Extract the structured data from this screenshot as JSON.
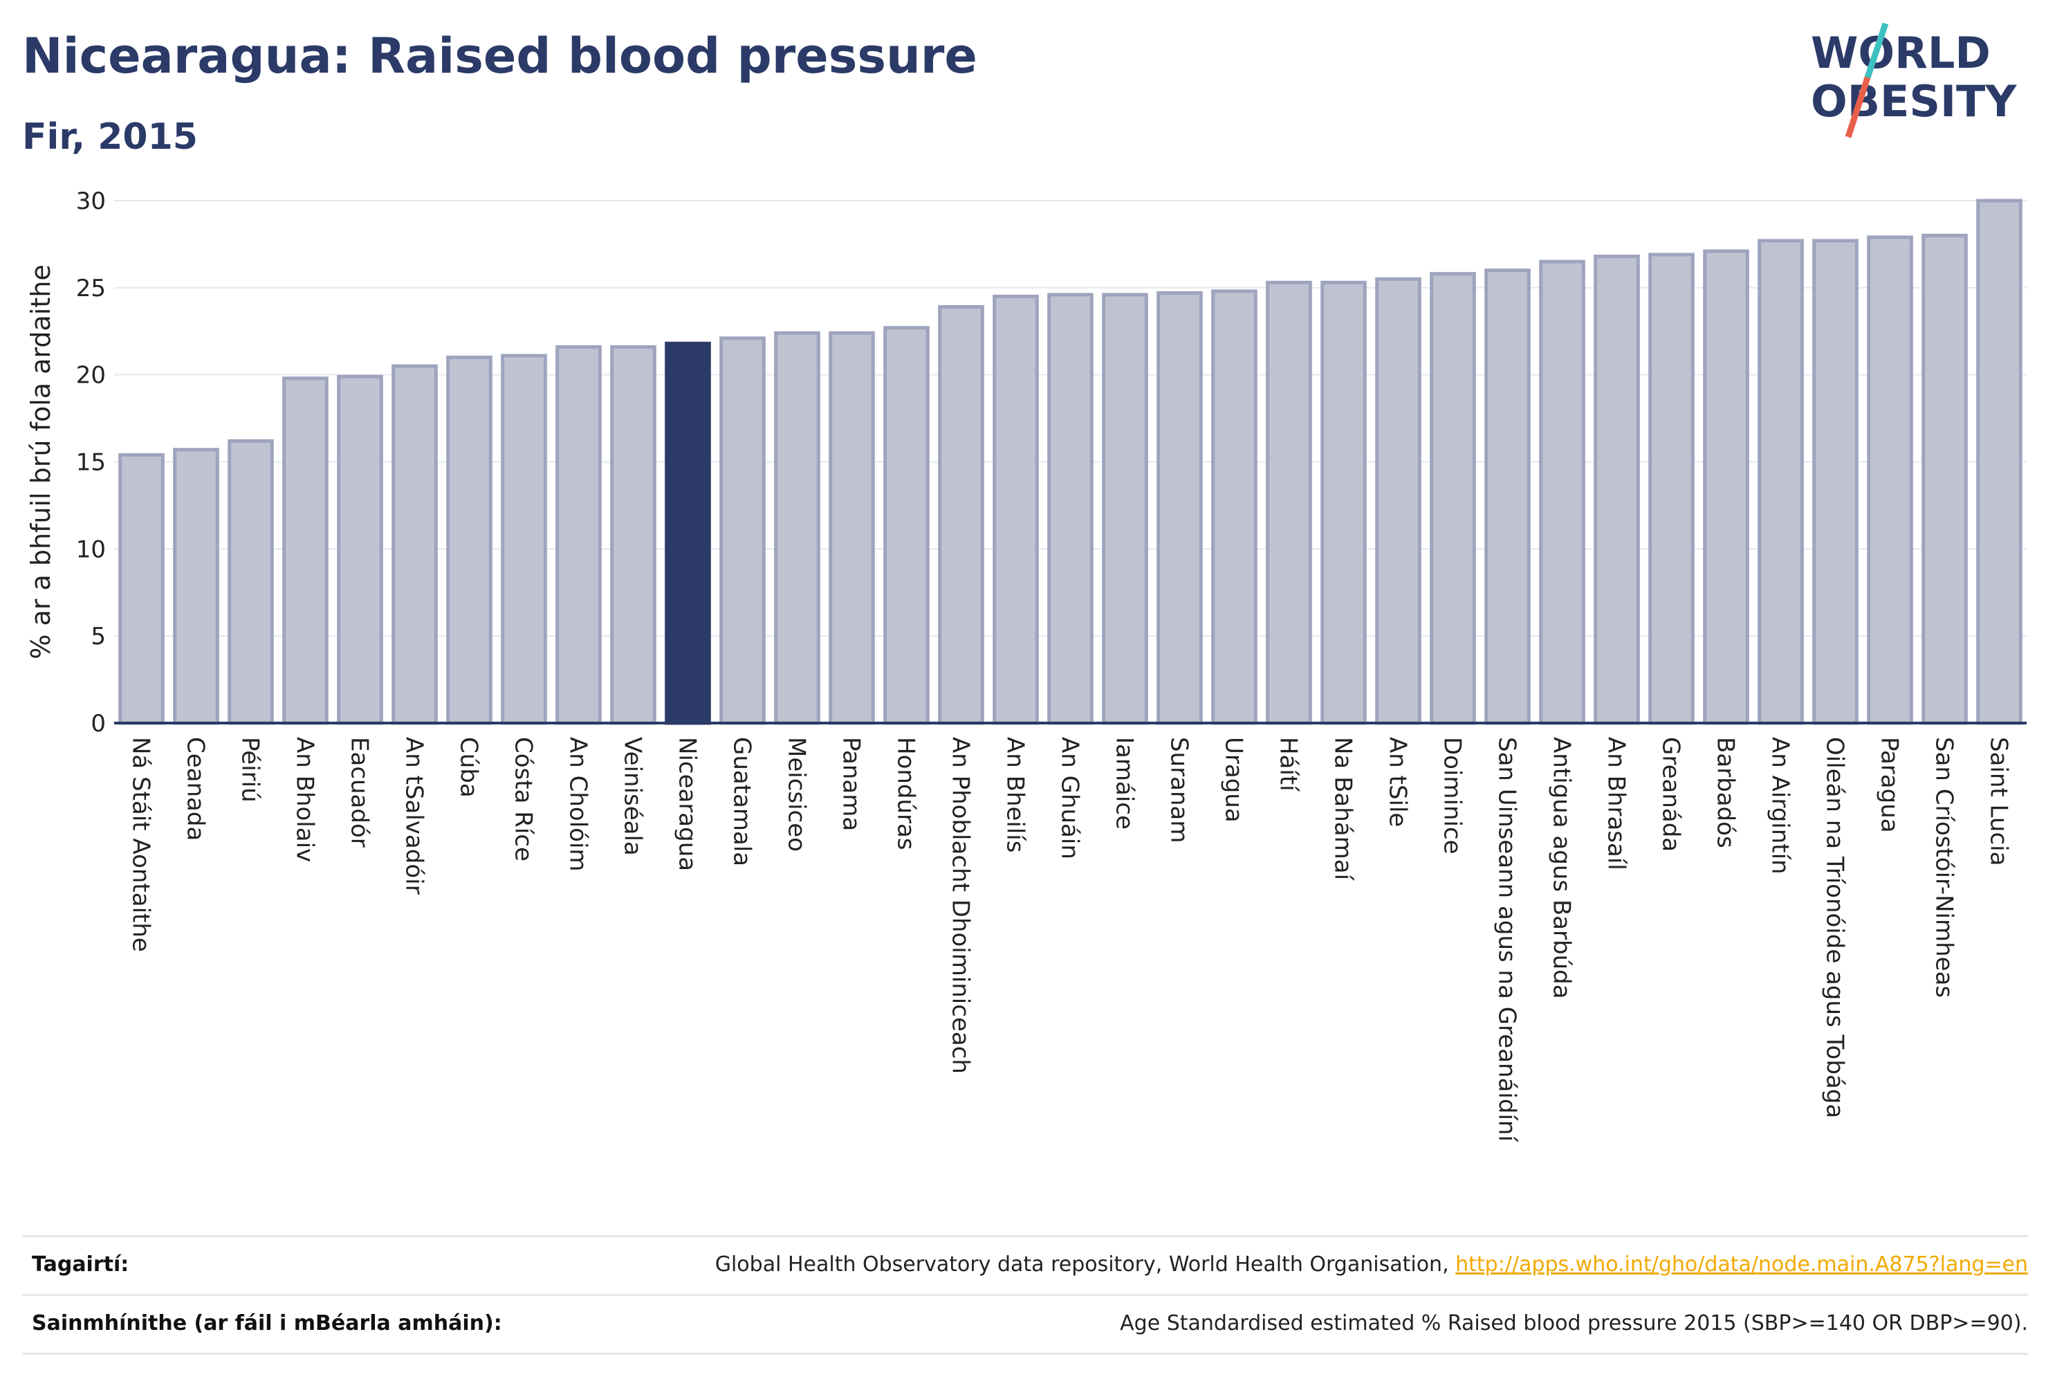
{
  "title": "Nicearagua: Raised blood pressure",
  "subtitle": "Fir, 2015",
  "logo": {
    "line1": "WORLD",
    "line2": "OBESITY",
    "accent_colors": [
      "#3ec1c1",
      "#e8604c"
    ]
  },
  "colors": {
    "bar_default": "#bfc3d1",
    "bar_default_stroke": "#9ea4bd",
    "bar_highlight": "#2b3a67",
    "axis": "#2b3a67",
    "grid": "#e6e8f0",
    "text_title": "#2b3a67",
    "link": "#f2a900"
  },
  "chart_data": {
    "type": "bar",
    "ylabel": "% ar a bhfuil brú fola ardaithe",
    "xlabel": "",
    "ylim": [
      0,
      30
    ],
    "yticks": [
      "0",
      "5",
      "10",
      "15",
      "20",
      "25",
      "30"
    ],
    "grid": true,
    "highlight": "Nicearagua",
    "categories": [
      "Ná Stáit Aontaithe",
      "Ceanada",
      "Péiriú",
      "An Bholaiv",
      "Eacuadór",
      "An tSalvadóir",
      "Cúba",
      "Cósta Ríce",
      "An Cholóim",
      "Veiniséala",
      "Nicearagua",
      "Guatamala",
      "Meicsiceo",
      "Panama",
      "Hondúras",
      "An Phoblacht Dhoiminiceach",
      "An Bheilís",
      "An Ghuáin",
      "Iamáice",
      "Suranam",
      "Uragua",
      "Háítí",
      "Na Bahámaí",
      "An tSile",
      "Doiminice",
      "San Uinseann agus na Greanáidíní",
      "Antigua agus Barbúda",
      "An Bhrasaíl",
      "Greanáda",
      "Barbadós",
      "An Airgintín",
      "Oileán na Tríonóide agus Tobága",
      "Paragua",
      "San Críostóir-Nimheas",
      "Saint Lucia"
    ],
    "values": [
      15.4,
      15.7,
      16.2,
      19.8,
      19.9,
      20.5,
      21.0,
      21.1,
      21.6,
      21.6,
      21.8,
      22.1,
      22.4,
      22.4,
      22.7,
      23.9,
      24.5,
      24.6,
      24.6,
      24.7,
      24.8,
      25.3,
      25.3,
      25.5,
      25.8,
      26.0,
      26.5,
      26.8,
      26.9,
      27.1,
      27.7,
      27.7,
      27.9,
      28.0,
      30.0
    ]
  },
  "footer": {
    "references_label": "Tagairtí:",
    "references_text": "Global Health Observatory data repository, World Health Organisation, ",
    "references_link": "http://apps.who.int/gho/data/node.main.A875?lang=en",
    "definitions_label": "Sainmhínithe (ar fáil i mBéarla amháin):",
    "definitions_text": "Age Standardised estimated % Raised blood pressure 2015 (SBP>=140 OR DBP>=90)."
  }
}
